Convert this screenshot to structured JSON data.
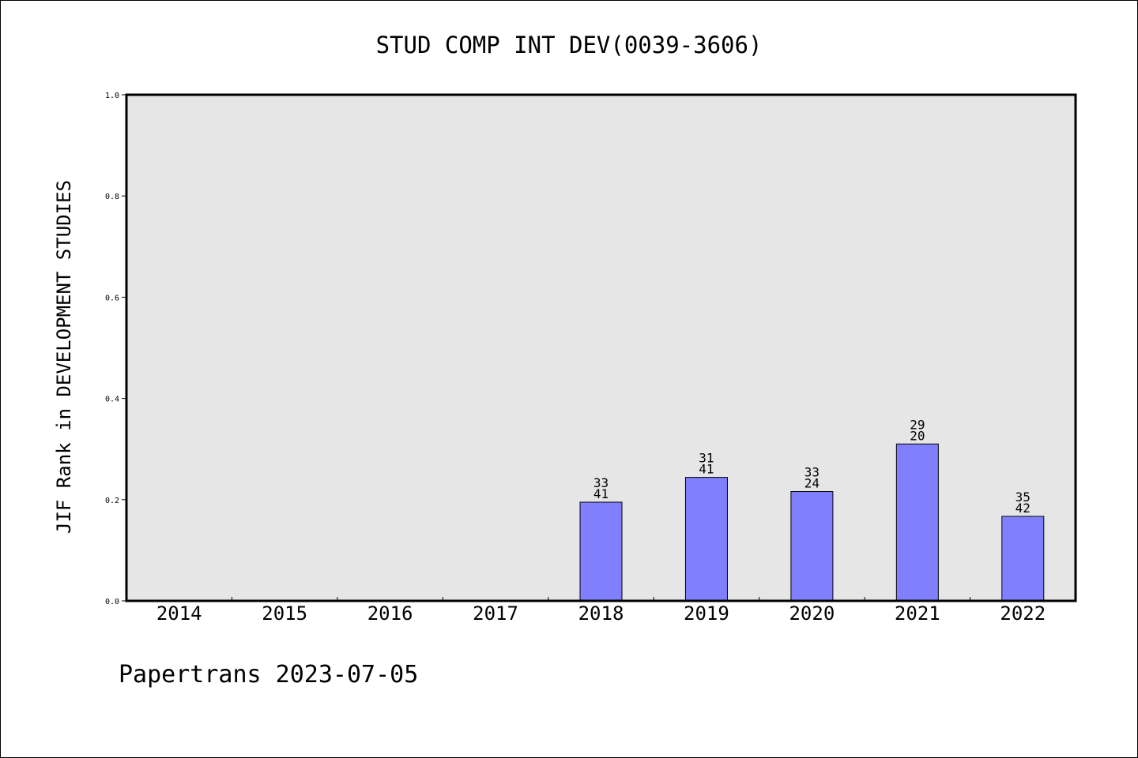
{
  "chart_data": {
    "type": "bar",
    "title": "STUD COMP INT DEV(0039-3606)",
    "ylabel": "JIF Rank in DEVELOPMENT STUDIES",
    "xlabel": "",
    "categories": [
      "2014",
      "2015",
      "2016",
      "2017",
      "2018",
      "2019",
      "2020",
      "2021",
      "2022"
    ],
    "values": [
      null,
      null,
      null,
      null,
      0.195,
      0.244,
      0.216,
      0.31,
      0.167
    ],
    "bar_labels": [
      null,
      null,
      null,
      null,
      {
        "top": "33",
        "bottom": "41"
      },
      {
        "top": "31",
        "bottom": "41"
      },
      {
        "top": "33",
        "bottom": "24"
      },
      {
        "top": "29",
        "bottom": "20"
      },
      {
        "top": "35",
        "bottom": "42"
      }
    ],
    "ylim": [
      0,
      1.0
    ],
    "yticks": [
      "0.0",
      "0.2",
      "0.4",
      "0.6",
      "0.8",
      "1.0"
    ],
    "grid": false,
    "legend": "none",
    "colors": {
      "bar_fill": "#8080ff",
      "plot_background": "#e6e6e6",
      "axis": "#000000"
    }
  },
  "footer": {
    "credit": "Papertrans 2023-07-05"
  }
}
